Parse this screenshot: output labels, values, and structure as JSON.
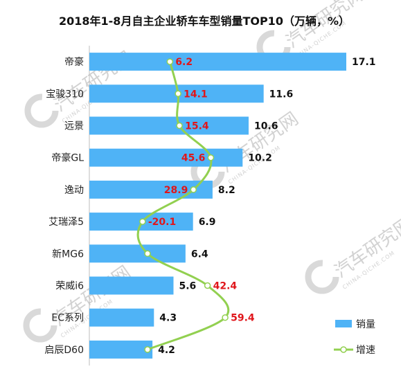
{
  "chart_data": {
    "type": "bar",
    "title": "2018年1-8月自主企业轿车车型销量TOP10（万辆，%）",
    "categories": [
      "帝豪",
      "宝骏310",
      "远景",
      "帝豪GL",
      "逸动",
      "艾瑞泽5",
      "新MG6",
      "荣威i6",
      "EC系列",
      "启辰D60"
    ],
    "series": [
      {
        "name": "销量",
        "values": [
          17.1,
          11.6,
          10.6,
          10.2,
          8.2,
          6.9,
          6.4,
          5.6,
          4.3,
          4.2
        ]
      },
      {
        "name": "增速",
        "values": [
          6.2,
          14.1,
          15.4,
          45.6,
          28.9,
          -20.1,
          null,
          42.4,
          59.4,
          null
        ]
      }
    ],
    "value_labels": [
      "17.1",
      "11.6",
      "10.6",
      "10.2",
      "8.2",
      "6.9",
      "6.4",
      "5.6",
      "4.3",
      "4.2"
    ],
    "rate_labels": [
      "6.2",
      "14.1",
      "15.4",
      "45.6",
      "28.9",
      "-20.1",
      "",
      "42.4",
      "59.4",
      ""
    ],
    "legend_position": "bottom-right",
    "colors": {
      "bar": "#4fb3f6",
      "line": "#92d050",
      "rate_text": "#e0161b"
    }
  },
  "watermark": {
    "text": "汽车研究网",
    "subtext": "CHINA-QICHE.COM"
  }
}
